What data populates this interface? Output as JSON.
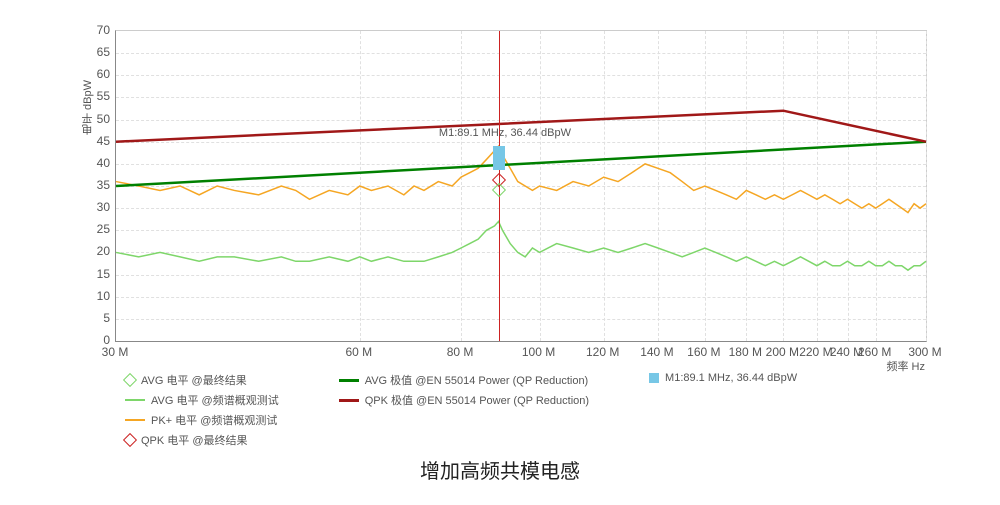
{
  "chart": {
    "type": "line",
    "background_color": "#ffffff",
    "grid_color": "#e0e0e0",
    "axis_color": "#888888",
    "font_color": "#555555",
    "label_fontsize": 12,
    "ylabel": "电平 dBpW",
    "xlabel": "频率 Hz",
    "ylim": [
      0,
      70
    ],
    "ytick_step": 5,
    "yticks": [
      0,
      5,
      10,
      15,
      20,
      25,
      30,
      35,
      40,
      45,
      50,
      55,
      60,
      65,
      70
    ],
    "xscale": "log",
    "xlim_mhz": [
      30,
      300
    ],
    "xticks_mhz": [
      30,
      60,
      80,
      100,
      120,
      140,
      160,
      180,
      200,
      220,
      240,
      260,
      300
    ],
    "xtick_labels": [
      "30 M",
      "60 M",
      "80 M",
      "100 M",
      "120 M",
      "140 M",
      "160 M",
      "180 M",
      "200 M",
      "220 M",
      "240 M",
      "260 M",
      "300 M"
    ],
    "marker": {
      "freq_mhz": 89.1,
      "level_dbpw": 36.44,
      "label": "M1:89.1 MHz, 36.44 dBpW",
      "bar_color": "#77c7e6",
      "line_color": "#cc2222",
      "diamond_lightgreen": "#7ed66a",
      "diamond_red": "#cc2222"
    },
    "series": {
      "avg_limit": {
        "label": "AVG 极值 @EN 55014 Power (QP Reduction)",
        "color": "#008000",
        "line_width": 2.5,
        "points_mhz_db": [
          [
            30,
            35
          ],
          [
            300,
            45
          ]
        ]
      },
      "qpk_limit": {
        "label": "QPK 极值 @EN 55014 Power (QP Reduction)",
        "color": "#a01818",
        "line_width": 2.5,
        "points_mhz_db": [
          [
            30,
            45
          ],
          [
            200,
            52
          ],
          [
            300,
            45
          ]
        ]
      },
      "pk_trace": {
        "label": "PK+ 电平 @频谱概观测试",
        "color": "#f5a623",
        "line_width": 1.5,
        "points_mhz_db": [
          [
            30,
            36
          ],
          [
            32,
            35
          ],
          [
            34,
            34
          ],
          [
            36,
            35
          ],
          [
            38,
            33
          ],
          [
            40,
            35
          ],
          [
            42,
            34
          ],
          [
            45,
            33
          ],
          [
            48,
            35
          ],
          [
            50,
            34
          ],
          [
            52,
            32
          ],
          [
            55,
            34
          ],
          [
            58,
            33
          ],
          [
            60,
            35
          ],
          [
            62,
            34
          ],
          [
            65,
            35
          ],
          [
            68,
            33
          ],
          [
            70,
            35
          ],
          [
            72,
            34
          ],
          [
            75,
            36
          ],
          [
            78,
            35
          ],
          [
            80,
            37
          ],
          [
            82,
            38
          ],
          [
            84,
            39
          ],
          [
            86,
            41
          ],
          [
            88,
            43
          ],
          [
            89,
            44
          ],
          [
            90,
            42
          ],
          [
            92,
            39
          ],
          [
            94,
            36
          ],
          [
            96,
            35
          ],
          [
            98,
            34
          ],
          [
            100,
            35
          ],
          [
            105,
            34
          ],
          [
            110,
            36
          ],
          [
            115,
            35
          ],
          [
            120,
            37
          ],
          [
            125,
            36
          ],
          [
            130,
            38
          ],
          [
            135,
            40
          ],
          [
            140,
            39
          ],
          [
            145,
            38
          ],
          [
            150,
            36
          ],
          [
            155,
            34
          ],
          [
            160,
            35
          ],
          [
            165,
            34
          ],
          [
            170,
            33
          ],
          [
            175,
            32
          ],
          [
            180,
            34
          ],
          [
            185,
            33
          ],
          [
            190,
            32
          ],
          [
            195,
            33
          ],
          [
            200,
            32
          ],
          [
            205,
            33
          ],
          [
            210,
            34
          ],
          [
            215,
            33
          ],
          [
            220,
            32
          ],
          [
            225,
            33
          ],
          [
            230,
            32
          ],
          [
            235,
            31
          ],
          [
            240,
            32
          ],
          [
            245,
            31
          ],
          [
            250,
            30
          ],
          [
            255,
            31
          ],
          [
            260,
            30
          ],
          [
            265,
            31
          ],
          [
            270,
            32
          ],
          [
            275,
            31
          ],
          [
            280,
            30
          ],
          [
            285,
            29
          ],
          [
            290,
            31
          ],
          [
            295,
            30
          ],
          [
            300,
            31
          ]
        ]
      },
      "avg_trace": {
        "label": "AVG 电平 @频谱概观测试",
        "color": "#7ed66a",
        "line_width": 1.5,
        "points_mhz_db": [
          [
            30,
            20
          ],
          [
            32,
            19
          ],
          [
            34,
            20
          ],
          [
            36,
            19
          ],
          [
            38,
            18
          ],
          [
            40,
            19
          ],
          [
            42,
            19
          ],
          [
            45,
            18
          ],
          [
            48,
            19
          ],
          [
            50,
            18
          ],
          [
            52,
            18
          ],
          [
            55,
            19
          ],
          [
            58,
            18
          ],
          [
            60,
            19
          ],
          [
            62,
            18
          ],
          [
            65,
            19
          ],
          [
            68,
            18
          ],
          [
            70,
            18
          ],
          [
            72,
            18
          ],
          [
            75,
            19
          ],
          [
            78,
            20
          ],
          [
            80,
            21
          ],
          [
            82,
            22
          ],
          [
            84,
            23
          ],
          [
            86,
            25
          ],
          [
            88,
            26
          ],
          [
            89,
            27
          ],
          [
            90,
            25
          ],
          [
            92,
            22
          ],
          [
            94,
            20
          ],
          [
            96,
            19
          ],
          [
            98,
            21
          ],
          [
            100,
            20
          ],
          [
            105,
            22
          ],
          [
            110,
            21
          ],
          [
            115,
            20
          ],
          [
            120,
            21
          ],
          [
            125,
            20
          ],
          [
            130,
            21
          ],
          [
            135,
            22
          ],
          [
            140,
            21
          ],
          [
            145,
            20
          ],
          [
            150,
            19
          ],
          [
            155,
            20
          ],
          [
            160,
            21
          ],
          [
            165,
            20
          ],
          [
            170,
            19
          ],
          [
            175,
            18
          ],
          [
            180,
            19
          ],
          [
            185,
            18
          ],
          [
            190,
            17
          ],
          [
            195,
            18
          ],
          [
            200,
            17
          ],
          [
            205,
            18
          ],
          [
            210,
            19
          ],
          [
            215,
            18
          ],
          [
            220,
            17
          ],
          [
            225,
            18
          ],
          [
            230,
            17
          ],
          [
            235,
            17
          ],
          [
            240,
            18
          ],
          [
            245,
            17
          ],
          [
            250,
            17
          ],
          [
            255,
            18
          ],
          [
            260,
            17
          ],
          [
            265,
            17
          ],
          [
            270,
            18
          ],
          [
            275,
            17
          ],
          [
            280,
            17
          ],
          [
            285,
            16
          ],
          [
            290,
            17
          ],
          [
            295,
            17
          ],
          [
            300,
            18
          ]
        ]
      }
    },
    "legend": {
      "avg_final": {
        "label": "AVG 电平 @最终结果",
        "color": "#7ed66a",
        "type": "diamond"
      },
      "avg_scan": {
        "label": "AVG 电平 @频谱概观测试",
        "color": "#7ed66a",
        "type": "line"
      },
      "pk_scan": {
        "label": "PK+ 电平 @频谱概观测试",
        "color": "#f5a623",
        "type": "line"
      },
      "qpk_final": {
        "label": "QPK 电平 @最终结果",
        "color": "#cc2222",
        "type": "diamond"
      },
      "avg_limit": {
        "label": "AVG 极值 @EN 55014 Power (QP Reduction)",
        "color": "#008000",
        "type": "line"
      },
      "qpk_limit": {
        "label": "QPK 极值 @EN 55014 Power (QP Reduction)",
        "color": "#a01818",
        "type": "line"
      },
      "m1": {
        "label": "M1:89.1 MHz, 36.44 dBpW",
        "color": "#77c7e6",
        "type": "marker"
      }
    }
  },
  "caption": "增加高频共模电感"
}
